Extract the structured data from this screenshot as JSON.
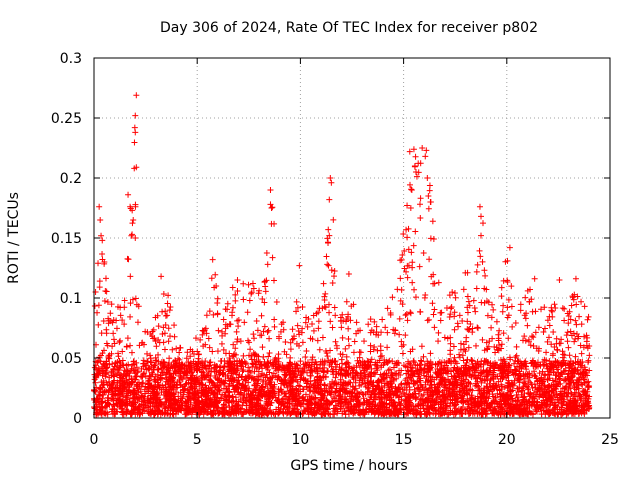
{
  "chart_data": {
    "type": "scatter",
    "title": "Day 306 of 2024, Rate Of TEC Index for receiver p802",
    "xlabel": "GPS time / hours",
    "ylabel": "ROTI / TECUs",
    "xlim": [
      0,
      25
    ],
    "ylim": [
      0,
      0.3
    ],
    "xticks": [
      "0",
      "5",
      "10",
      "15",
      "20",
      "25"
    ],
    "yticks": [
      "0",
      "0.05",
      "0.1",
      "0.15",
      "0.2",
      "0.25",
      "0.3"
    ],
    "grid": true,
    "marker": "+",
    "color": "#ff0000",
    "series": [
      {
        "name": "",
        "envelope": [
          [
            0.0,
            0.09
          ],
          [
            0.3,
            0.17
          ],
          [
            0.5,
            0.13
          ],
          [
            1.0,
            0.09
          ],
          [
            1.5,
            0.1
          ],
          [
            1.8,
            0.18
          ],
          [
            2.0,
            0.27
          ],
          [
            2.2,
            0.08
          ],
          [
            2.7,
            0.07
          ],
          [
            3.0,
            0.1
          ],
          [
            3.5,
            0.11
          ],
          [
            4.0,
            0.07
          ],
          [
            4.5,
            0.06
          ],
          [
            5.0,
            0.07
          ],
          [
            5.5,
            0.09
          ],
          [
            5.8,
            0.13
          ],
          [
            6.2,
            0.08
          ],
          [
            6.6,
            0.11
          ],
          [
            7.0,
            0.13
          ],
          [
            7.6,
            0.12
          ],
          [
            8.0,
            0.11
          ],
          [
            8.4,
            0.14
          ],
          [
            8.7,
            0.19
          ],
          [
            9.0,
            0.09
          ],
          [
            9.5,
            0.07
          ],
          [
            10.0,
            0.13
          ],
          [
            10.5,
            0.08
          ],
          [
            11.0,
            0.1
          ],
          [
            11.5,
            0.2
          ],
          [
            11.8,
            0.09
          ],
          [
            12.4,
            0.12
          ],
          [
            12.8,
            0.08
          ],
          [
            13.2,
            0.08
          ],
          [
            13.8,
            0.09
          ],
          [
            14.3,
            0.1
          ],
          [
            14.8,
            0.13
          ],
          [
            15.2,
            0.19
          ],
          [
            15.5,
            0.22
          ],
          [
            15.8,
            0.22
          ],
          [
            16.2,
            0.22
          ],
          [
            16.6,
            0.12
          ],
          [
            17.0,
            0.1
          ],
          [
            17.5,
            0.11
          ],
          [
            18.0,
            0.13
          ],
          [
            18.5,
            0.12
          ],
          [
            18.8,
            0.18
          ],
          [
            19.2,
            0.1
          ],
          [
            19.6,
            0.09
          ],
          [
            20.0,
            0.14
          ],
          [
            20.5,
            0.09
          ],
          [
            21.0,
            0.11
          ],
          [
            21.5,
            0.1
          ],
          [
            22.0,
            0.09
          ],
          [
            22.6,
            0.1
          ],
          [
            23.0,
            0.11
          ],
          [
            23.5,
            0.1
          ],
          [
            24.0,
            0.09
          ]
        ],
        "spikes": [
          [
            0.25,
            0.176
          ],
          [
            0.3,
            0.165
          ],
          [
            0.4,
            0.148
          ],
          [
            0.5,
            0.13
          ],
          [
            1.65,
            0.186
          ],
          [
            1.75,
            0.176
          ],
          [
            1.85,
            0.173
          ],
          [
            1.9,
            0.165
          ],
          [
            1.95,
            0.208
          ],
          [
            2.0,
            0.252
          ],
          [
            2.0,
            0.238
          ],
          [
            2.05,
            0.269
          ],
          [
            2.05,
            0.209
          ],
          [
            2.0,
            0.15
          ],
          [
            3.25,
            0.118
          ],
          [
            5.75,
            0.132
          ],
          [
            8.55,
            0.19
          ],
          [
            8.55,
            0.178
          ],
          [
            8.6,
            0.175
          ],
          [
            9.95,
            0.127
          ],
          [
            11.45,
            0.2
          ],
          [
            11.5,
            0.196
          ],
          [
            11.4,
            0.182
          ],
          [
            11.35,
            0.157
          ],
          [
            11.4,
            0.152
          ],
          [
            11.3,
            0.128
          ],
          [
            12.35,
            0.12
          ],
          [
            15.3,
            0.222
          ],
          [
            15.5,
            0.224
          ],
          [
            15.55,
            0.21
          ],
          [
            15.6,
            0.205
          ],
          [
            15.9,
            0.225
          ],
          [
            16.05,
            0.218
          ],
          [
            16.1,
            0.223
          ],
          [
            16.15,
            0.2
          ],
          [
            16.2,
            0.185
          ],
          [
            15.4,
            0.19
          ],
          [
            15.35,
            0.175
          ],
          [
            16.3,
            0.18
          ],
          [
            18.7,
            0.176
          ],
          [
            18.75,
            0.168
          ],
          [
            18.75,
            0.152
          ],
          [
            20.15,
            0.142
          ],
          [
            21.35,
            0.116
          ],
          [
            22.55,
            0.115
          ],
          [
            23.35,
            0.116
          ]
        ]
      }
    ]
  }
}
